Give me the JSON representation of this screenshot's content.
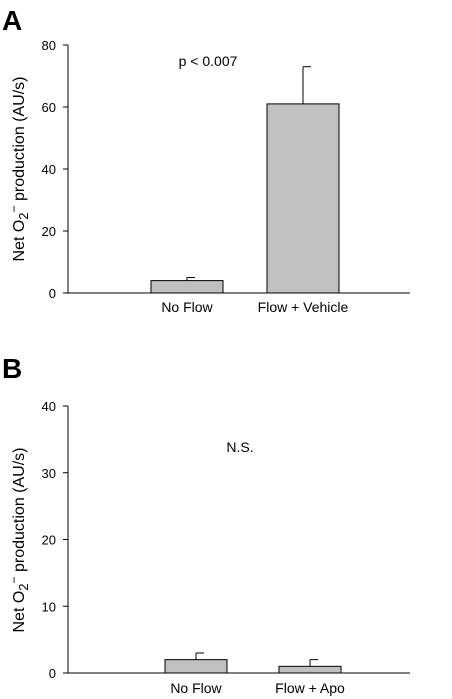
{
  "chart_data": [
    {
      "type": "bar",
      "panel_label": "A",
      "categories": [
        "No Flow",
        "Flow + Vehicle"
      ],
      "values": [
        4,
        61
      ],
      "error_bars": [
        1,
        12
      ],
      "annotation": "p < 0.007",
      "ylabel_parts": [
        "Net O",
        "2",
        "−",
        " production (AU/s)"
      ],
      "ylim": [
        0,
        80
      ],
      "yticks": [
        0,
        20,
        40,
        60,
        80
      ],
      "bar_color": "#c0c0c0",
      "grid": false
    },
    {
      "type": "bar",
      "panel_label": "B",
      "categories": [
        "No Flow",
        "Flow + Apo"
      ],
      "values": [
        2,
        1
      ],
      "error_bars": [
        1,
        1
      ],
      "annotation": "N.S.",
      "ylabel_parts": [
        "Net O",
        "2",
        "−",
        " production (AU/s)"
      ],
      "ylim": [
        0,
        40
      ],
      "yticks": [
        0,
        10,
        20,
        30,
        40
      ],
      "bar_color": "#c0c0c0",
      "grid": false
    }
  ]
}
